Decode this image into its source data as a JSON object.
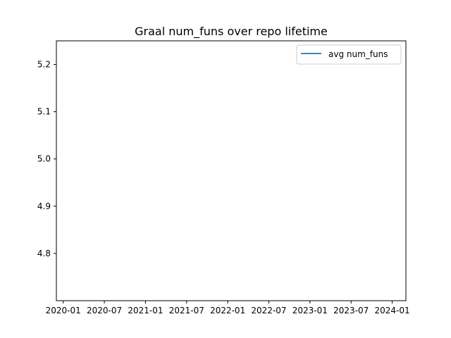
{
  "chart_data": {
    "type": "line",
    "title": "Graal num_funs over repo lifetime",
    "xlabel": "",
    "ylabel": "",
    "x_ticks": [
      "2020-01",
      "2020-07",
      "2021-01",
      "2021-07",
      "2022-01",
      "2022-07",
      "2023-01",
      "2023-07",
      "2024-01"
    ],
    "y_ticks": [
      4.8,
      4.9,
      5.0,
      5.1,
      5.2
    ],
    "ylim": [
      4.7,
      5.25
    ],
    "xlim": [
      "2019-12",
      "2024-03"
    ],
    "grid": false,
    "legend_position": "top-right",
    "series": [
      {
        "name": "avg num_funs",
        "color": "#1f77b4",
        "x": [],
        "y": []
      }
    ]
  }
}
